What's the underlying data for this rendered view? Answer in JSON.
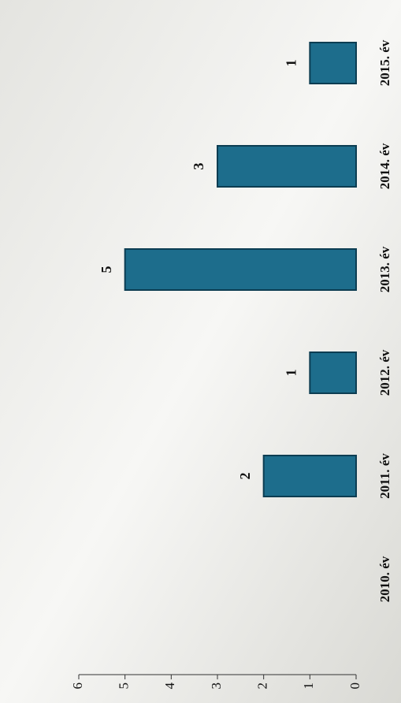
{
  "chart_data": {
    "type": "bar",
    "categories": [
      "2010. év",
      "2011. év",
      "2012. év",
      "2013. év",
      "2014. év",
      "2015. év"
    ],
    "values": [
      0,
      2,
      1,
      5,
      3,
      1
    ],
    "color": "#1d6d8c",
    "ylim": [
      0,
      6
    ],
    "yticks": [
      0,
      1,
      2,
      3,
      4,
      5,
      6
    ],
    "grid": false
  }
}
